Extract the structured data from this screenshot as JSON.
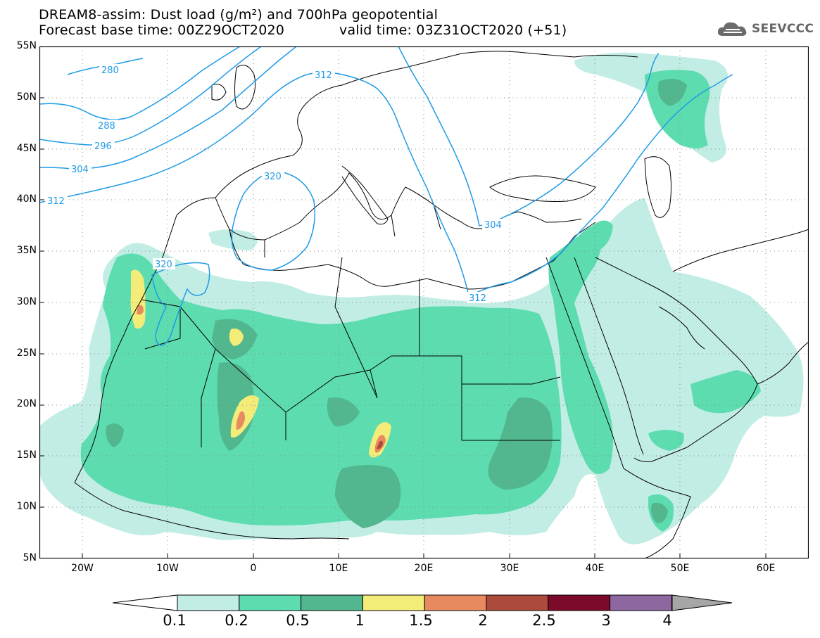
{
  "header": {
    "title_line1": "DREAM8-assim: Dust load (g/m²) and 700hPa geopotential",
    "title_line2_left": "Forecast base time: 00Z29OCT2020",
    "title_line2_right": "valid time: 03Z31OCT2020 (+51)"
  },
  "logo": {
    "text": "SEEVCCC",
    "icon": "cloud-logo-icon"
  },
  "map": {
    "lon_range": [
      -25,
      65
    ],
    "lat_range": [
      5,
      55
    ],
    "lat_ticks": [
      "55N",
      "50N",
      "45N",
      "40N",
      "35N",
      "30N",
      "25N",
      "20N",
      "15N",
      "10N",
      "5N"
    ],
    "lon_ticks": [
      "20W",
      "10W",
      "0",
      "10E",
      "20E",
      "30E",
      "40E",
      "50E",
      "60E"
    ],
    "grid": "dotted",
    "contour_color": "#1e9be6",
    "contour_labels": [
      "280",
      "288",
      "296",
      "304",
      "312",
      "312",
      "320",
      "320",
      "304",
      "312"
    ]
  },
  "colorbar": {
    "labels": [
      "0.1",
      "0.2",
      "0.5",
      "1",
      "1.5",
      "2",
      "2.5",
      "3",
      "4"
    ],
    "colors": [
      "#c2ede4",
      "#5ddcb0",
      "#52b68e",
      "#f3ec78",
      "#e88a60",
      "#ac4a3c",
      "#7c0a2a",
      "#8c67a0",
      "#a6a6a6"
    ]
  }
}
